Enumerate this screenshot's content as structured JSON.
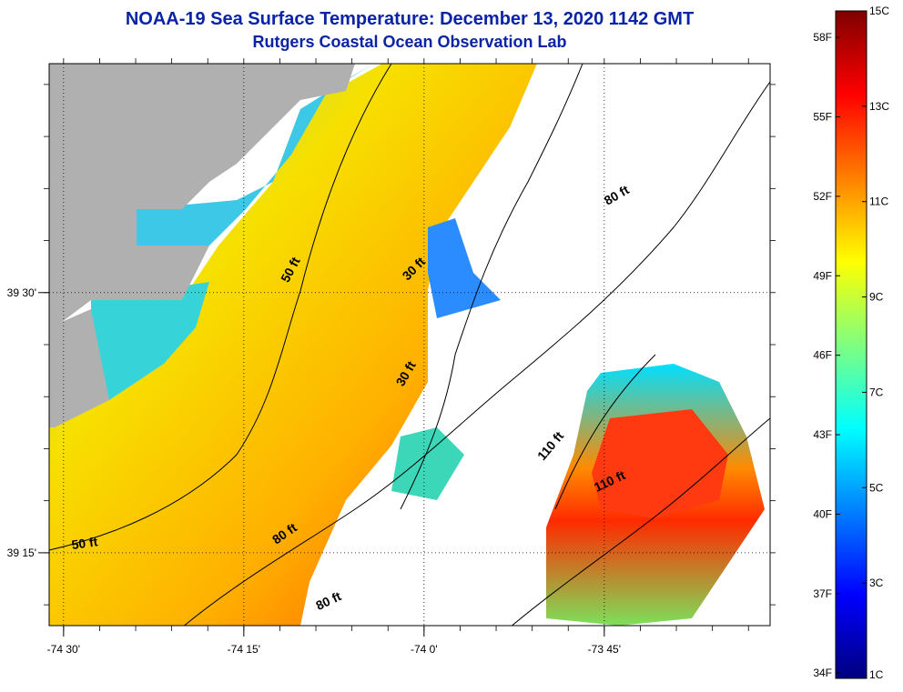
{
  "title": "NOAA-19 Sea Surface Temperature:  December 13, 2020 1142 GMT",
  "subtitle": "Rutgers Coastal Ocean Observation Lab",
  "map": {
    "x_ticks": [
      {
        "value": -74.5,
        "label": "-74 30'"
      },
      {
        "value": -74.25,
        "label": "-74 15'"
      },
      {
        "value": -74.0,
        "label": "-74 0'"
      },
      {
        "value": -73.75,
        "label": "-73 45'"
      }
    ],
    "y_ticks": [
      {
        "value": 39.5,
        "label": "39 30'"
      },
      {
        "value": 39.25,
        "label": "39 15'"
      }
    ],
    "lon_range": [
      -74.52,
      -73.52
    ],
    "lat_range": [
      39.18,
      39.72
    ],
    "contour_labels": [
      {
        "text": "50 ft",
        "lon": -74.18,
        "lat": 39.52,
        "rot": -62
      },
      {
        "text": "50 ft",
        "lon": -74.47,
        "lat": 39.255,
        "rot": -8
      },
      {
        "text": "30 ft",
        "lon": -74.01,
        "lat": 39.52,
        "rot": -45
      },
      {
        "text": "30 ft",
        "lon": -74.02,
        "lat": 39.42,
        "rot": -60
      },
      {
        "text": "80 ft",
        "lon": -73.73,
        "lat": 39.59,
        "rot": -30
      },
      {
        "text": "80 ft",
        "lon": -74.19,
        "lat": 39.265,
        "rot": -35
      },
      {
        "text": "80 ft",
        "lon": -74.13,
        "lat": 39.2,
        "rot": -25
      },
      {
        "text": "110 ft",
        "lon": -73.82,
        "lat": 39.35,
        "rot": -50
      },
      {
        "text": "110 ft",
        "lon": -73.74,
        "lat": 39.315,
        "rot": -25
      }
    ],
    "land_color": "#b0b0b0",
    "cloud_color": "#ffffff"
  },
  "colorbar": {
    "celsius": [
      "15C",
      "13C",
      "11C",
      "9C",
      "7C",
      "5C",
      "3C",
      "1C"
    ],
    "fahrenheit": [
      "58F",
      "55F",
      "52F",
      "49F",
      "46F",
      "43F",
      "40F",
      "37F",
      "34F"
    ],
    "min_c": 1,
    "max_c": 15
  }
}
